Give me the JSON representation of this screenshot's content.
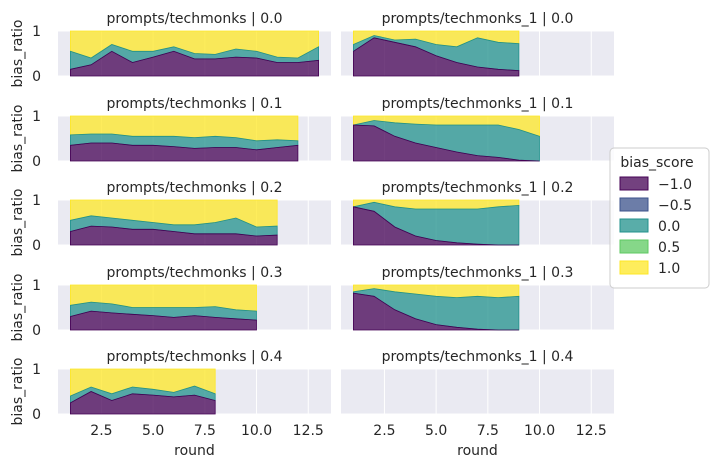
{
  "chart_data": {
    "type": "area",
    "stacked": true,
    "facet_grid": {
      "rows": 5,
      "cols": 2,
      "sharex": true,
      "sharey": true
    },
    "xlabel": "round",
    "ylabel": "bias_ratio",
    "xlim": [
      0.4,
      13.6
    ],
    "ylim": [
      0,
      1
    ],
    "xticks": [
      2.5,
      5.0,
      7.5,
      10.0,
      12.5
    ],
    "xtick_labels": [
      "2.5",
      "5.0",
      "7.5",
      "10.0",
      "12.5"
    ],
    "yticks": [
      0,
      1
    ],
    "ytick_labels": [
      "0",
      "1"
    ],
    "grid": true,
    "legend": {
      "title": "bias_score",
      "placement": "right",
      "entries": [
        {
          "label": "−1.0",
          "color": "#440154"
        },
        {
          "label": "−0.5",
          "color": "#3b528b"
        },
        {
          "label": "0.0",
          "color": "#21918c"
        },
        {
          "label": "0.5",
          "color": "#5ec962"
        },
        {
          "label": "1.0",
          "color": "#fde725"
        }
      ]
    },
    "panels": [
      {
        "title": "prompts/techmonks | 0.0",
        "rounds": [
          1,
          2,
          3,
          4,
          5,
          6,
          7,
          8,
          9,
          10,
          11,
          12,
          13
        ],
        "neg1": [
          0.15,
          0.25,
          0.55,
          0.3,
          0.42,
          0.55,
          0.38,
          0.38,
          0.42,
          0.4,
          0.3,
          0.3,
          0.35
        ],
        "zero": [
          0.55,
          0.4,
          0.7,
          0.55,
          0.55,
          0.65,
          0.5,
          0.48,
          0.6,
          0.55,
          0.42,
          0.4,
          0.65
        ]
      },
      {
        "title": "prompts/techmonks_1 | 0.0",
        "rounds": [
          1,
          2,
          3,
          4,
          5,
          6,
          7,
          8,
          9
        ],
        "neg1": [
          0.55,
          0.85,
          0.75,
          0.65,
          0.45,
          0.3,
          0.2,
          0.15,
          0.12
        ],
        "zero": [
          0.7,
          0.9,
          0.8,
          0.82,
          0.7,
          0.65,
          0.85,
          0.75,
          0.72
        ]
      },
      {
        "title": "prompts/techmonks | 0.1",
        "rounds": [
          1,
          2,
          3,
          4,
          5,
          6,
          7,
          8,
          9,
          10,
          11,
          12
        ],
        "neg1": [
          0.35,
          0.4,
          0.4,
          0.35,
          0.35,
          0.32,
          0.28,
          0.3,
          0.3,
          0.25,
          0.3,
          0.35
        ],
        "zero": [
          0.58,
          0.6,
          0.6,
          0.55,
          0.55,
          0.55,
          0.52,
          0.55,
          0.52,
          0.45,
          0.47,
          0.45
        ]
      },
      {
        "title": "prompts/techmonks_1 | 0.1",
        "rounds": [
          1,
          2,
          3,
          4,
          5,
          6,
          7,
          8,
          9,
          10
        ],
        "neg1": [
          0.8,
          0.78,
          0.55,
          0.4,
          0.3,
          0.2,
          0.12,
          0.08,
          0.02,
          0.0
        ],
        "zero": [
          0.8,
          0.9,
          0.85,
          0.82,
          0.8,
          0.8,
          0.8,
          0.8,
          0.7,
          0.55
        ]
      },
      {
        "title": "prompts/techmonks | 0.2",
        "rounds": [
          1,
          2,
          3,
          4,
          5,
          6,
          7,
          8,
          9,
          10,
          11
        ],
        "neg1": [
          0.3,
          0.42,
          0.4,
          0.35,
          0.35,
          0.3,
          0.25,
          0.25,
          0.25,
          0.2,
          0.22
        ],
        "zero": [
          0.55,
          0.65,
          0.6,
          0.55,
          0.5,
          0.45,
          0.45,
          0.5,
          0.6,
          0.4,
          0.42
        ]
      },
      {
        "title": "prompts/techmonks_1 | 0.2",
        "rounds": [
          1,
          2,
          3,
          4,
          5,
          6,
          7,
          8,
          9
        ],
        "neg1": [
          0.85,
          0.75,
          0.4,
          0.2,
          0.1,
          0.05,
          0.02,
          0.0,
          0.0
        ],
        "zero": [
          0.85,
          0.95,
          0.85,
          0.8,
          0.8,
          0.8,
          0.8,
          0.85,
          0.88
        ]
      },
      {
        "title": "prompts/techmonks | 0.3",
        "rounds": [
          1,
          2,
          3,
          4,
          5,
          6,
          7,
          8,
          9,
          10
        ],
        "neg1": [
          0.3,
          0.42,
          0.38,
          0.35,
          0.32,
          0.28,
          0.32,
          0.28,
          0.25,
          0.22
        ],
        "zero": [
          0.55,
          0.62,
          0.58,
          0.5,
          0.5,
          0.5,
          0.5,
          0.52,
          0.45,
          0.42
        ]
      },
      {
        "title": "prompts/techmonks_1 | 0.3",
        "rounds": [
          1,
          2,
          3,
          4,
          5,
          6,
          7,
          8,
          9
        ],
        "neg1": [
          0.82,
          0.75,
          0.45,
          0.25,
          0.12,
          0.06,
          0.02,
          0.0,
          0.0
        ],
        "zero": [
          0.85,
          0.92,
          0.85,
          0.8,
          0.75,
          0.72,
          0.75,
          0.72,
          0.75
        ]
      },
      {
        "title": "prompts/techmonks | 0.4",
        "rounds": [
          1,
          2,
          3,
          4,
          5,
          6,
          7,
          8
        ],
        "neg1": [
          0.25,
          0.5,
          0.3,
          0.45,
          0.42,
          0.38,
          0.42,
          0.3
        ],
        "zero": [
          0.4,
          0.6,
          0.45,
          0.6,
          0.55,
          0.48,
          0.62,
          0.45
        ]
      },
      {
        "title": "prompts/techmonks_1 | 0.4",
        "rounds": [],
        "neg1": [],
        "zero": []
      }
    ]
  }
}
